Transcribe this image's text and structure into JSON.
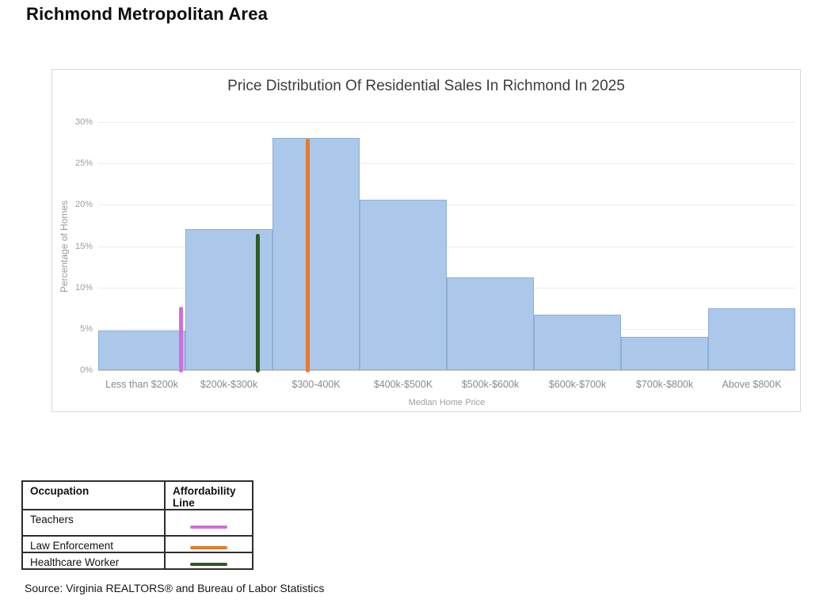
{
  "page": {
    "title": "Richmond Metropolitan Area",
    "source": "Source: Virginia REALTORS® and Bureau of Labor Statistics"
  },
  "chart_data": {
    "type": "bar",
    "title": "Price Distribution Of Residential Sales In Richmond In 2025",
    "xlabel": "Median Home Price",
    "ylabel": "Percentage of Homes",
    "categories": [
      "Less than $200k",
      "$200k-$300k",
      "$300-400K",
      "$400k-$500K",
      "$500k-$600k",
      "$600k-$700k",
      "$700k-$800k",
      "Above $800K"
    ],
    "values": [
      4.8,
      17.1,
      28.1,
      20.6,
      11.2,
      6.7,
      4.0,
      7.5
    ],
    "ylim": [
      0,
      30
    ],
    "yticks": [
      "30%",
      "25%",
      "20%",
      "15%",
      "10%",
      "5%",
      "0%"
    ],
    "grid": true,
    "legend_position": "bottom-table",
    "bar_color": "#ABC8EB",
    "bar_border": "#8EAED3",
    "affordability_lines": [
      {
        "label": "Teachers",
        "color": "#D16EDA",
        "bin": 0,
        "offset_in_bin": 0.95,
        "top_value_pct": 7.7
      },
      {
        "label": "Healthcare Worker",
        "color": "#2F5B22",
        "bin": 1,
        "offset_in_bin": 0.83,
        "top_value_pct": 16.5
      },
      {
        "label": "Law Enforcement",
        "color": "#E8792F",
        "bin": 2,
        "offset_in_bin": 0.4,
        "top_value_pct": 28.0
      }
    ]
  },
  "legend_table": {
    "headers": [
      "Occupation",
      "Affordability Line"
    ],
    "rows": [
      {
        "occupation": "Teachers",
        "color": "#D16EDA"
      },
      {
        "occupation": "Law Enforcement",
        "color": "#E8792F"
      },
      {
        "occupation": "Healthcare Worker",
        "color": "#2F5B22"
      }
    ]
  }
}
